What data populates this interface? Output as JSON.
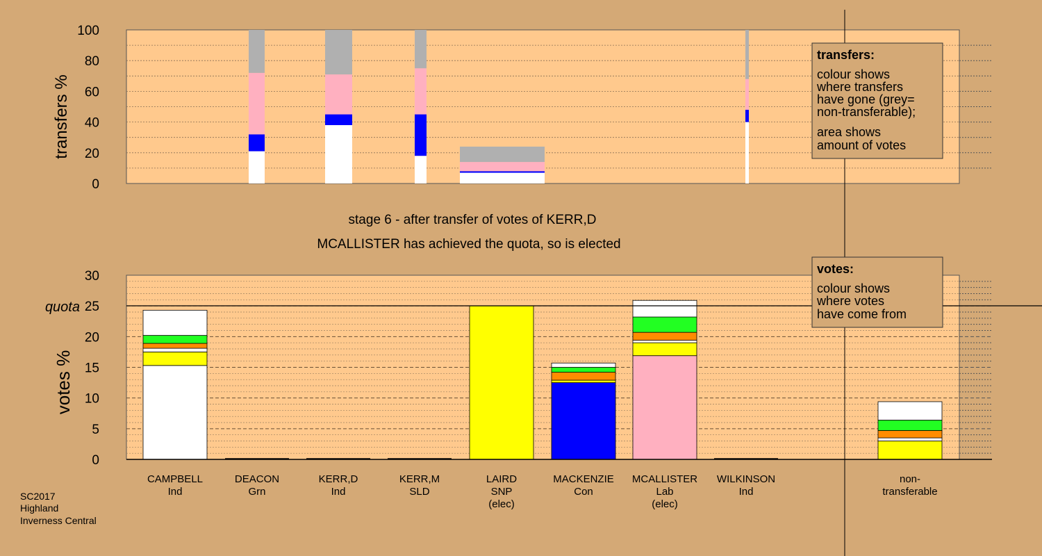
{
  "colors": {
    "page_background": "#d4a976",
    "plot_background": "#ffc98d",
    "white": "#ffffff",
    "yellow": "#ffff00",
    "orange": "#ff8c00",
    "green": "#22ff22",
    "blue": "#0000ff",
    "pink": "#ffb0c0",
    "grey": "#b0b0b0"
  },
  "chart_data": [
    {
      "type": "bar",
      "subtype": "stacked-transfers",
      "ylabel": "transfers %",
      "ylim": [
        0,
        100
      ],
      "yticks": [
        0,
        20,
        40,
        60,
        80,
        100
      ],
      "grid": "dotted",
      "note": "bar width shows amount of votes transferred; each bar stacks segments bottom-to-top",
      "bars": [
        {
          "candidate": "CAMPBELL",
          "segments": []
        },
        {
          "candidate": "DEACON",
          "segments": [
            {
              "color": "white",
              "value": 21
            },
            {
              "color": "blue",
              "value": 11
            },
            {
              "color": "pink",
              "value": 40
            },
            {
              "color": "grey",
              "value": 28
            }
          ]
        },
        {
          "candidate": "KERR,D",
          "segments": [
            {
              "color": "white",
              "value": 38
            },
            {
              "color": "blue",
              "value": 7
            },
            {
              "color": "pink",
              "value": 26
            },
            {
              "color": "grey",
              "value": 29
            }
          ]
        },
        {
          "candidate": "KERR,M",
          "segments": [
            {
              "color": "white",
              "value": 18
            },
            {
              "color": "blue",
              "value": 27
            },
            {
              "color": "pink",
              "value": 30
            },
            {
              "color": "grey",
              "value": 25
            }
          ]
        },
        {
          "candidate": "LAIRD",
          "segments": [
            {
              "color": "white",
              "value": 7
            },
            {
              "color": "blue",
              "value": 1
            },
            {
              "color": "pink",
              "value": 6
            },
            {
              "color": "grey",
              "value": 10
            }
          ]
        },
        {
          "candidate": "MACKENZIE",
          "segments": []
        },
        {
          "candidate": "MCALLISTER",
          "segments": []
        },
        {
          "candidate": "WILKINSON",
          "segments": [
            {
              "color": "white",
              "value": 40
            },
            {
              "color": "blue",
              "value": 8
            },
            {
              "color": "pink",
              "value": 20
            },
            {
              "color": "grey",
              "value": 32
            }
          ]
        }
      ],
      "legend": {
        "title": "transfers:",
        "lines1": [
          "colour shows",
          "where transfers",
          "have gone (grey=",
          "non-transferable);"
        ],
        "lines2": [
          "area shows",
          "amount of votes"
        ]
      }
    },
    {
      "type": "bar",
      "subtype": "stacked-votes",
      "ylabel": "votes %",
      "ylim": [
        0,
        30
      ],
      "yticks": [
        0,
        5,
        10,
        15,
        20,
        25,
        30
      ],
      "quota": 25,
      "quota_label": "quota",
      "grid": "dashed",
      "categories": [
        {
          "name": "CAMPBELL",
          "party": "Ind",
          "status": "",
          "segments": [
            {
              "color": "white",
              "value": 15.3
            },
            {
              "color": "yellow",
              "value": 2.2
            },
            {
              "color": "white",
              "value": 0.6
            },
            {
              "color": "orange",
              "value": 0.8
            },
            {
              "color": "green",
              "value": 1.3
            },
            {
              "color": "white",
              "value": 4.1
            }
          ]
        },
        {
          "name": "DEACON",
          "party": "Grn",
          "status": "",
          "segments": []
        },
        {
          "name": "KERR,D",
          "party": "Ind",
          "status": "",
          "segments": []
        },
        {
          "name": "KERR,M",
          "party": "SLD",
          "status": "",
          "segments": []
        },
        {
          "name": "LAIRD",
          "party": "SNP",
          "status": "(elec)",
          "segments": [
            {
              "color": "yellow",
              "value": 25
            }
          ]
        },
        {
          "name": "MACKENZIE",
          "party": "Con",
          "status": "",
          "segments": [
            {
              "color": "blue",
              "value": 12.5
            },
            {
              "color": "yellow",
              "value": 0.4
            },
            {
              "color": "orange",
              "value": 1.3
            },
            {
              "color": "green",
              "value": 0.8
            },
            {
              "color": "white",
              "value": 0.7
            }
          ]
        },
        {
          "name": "MCALLISTER",
          "party": "Lab",
          "status": "(elec)",
          "segments": [
            {
              "color": "pink",
              "value": 16.9
            },
            {
              "color": "yellow",
              "value": 2.1
            },
            {
              "color": "white",
              "value": 0.4
            },
            {
              "color": "orange",
              "value": 1.3
            },
            {
              "color": "green",
              "value": 2.5
            },
            {
              "color": "white",
              "value": 2.7
            }
          ]
        },
        {
          "name": "WILKINSON",
          "party": "Ind",
          "status": "",
          "segments": []
        },
        {
          "name": "non-",
          "party": "transferable",
          "status": "",
          "segments": [
            {
              "color": "yellow",
              "value": 3.0
            },
            {
              "color": "white",
              "value": 0.5
            },
            {
              "color": "orange",
              "value": 1.2
            },
            {
              "color": "green",
              "value": 1.7
            },
            {
              "color": "white",
              "value": 3.0
            }
          ]
        }
      ],
      "legend": {
        "title": "votes:",
        "lines1": [
          "colour shows",
          "where votes",
          "have come from"
        ]
      }
    }
  ],
  "caption": {
    "stage": "stage 6 - after transfer of votes of KERR,D",
    "result": "MCALLISTER has achieved the quota, so is elected"
  },
  "footer": [
    "SC2017",
    "Highland",
    "Inverness Central"
  ]
}
